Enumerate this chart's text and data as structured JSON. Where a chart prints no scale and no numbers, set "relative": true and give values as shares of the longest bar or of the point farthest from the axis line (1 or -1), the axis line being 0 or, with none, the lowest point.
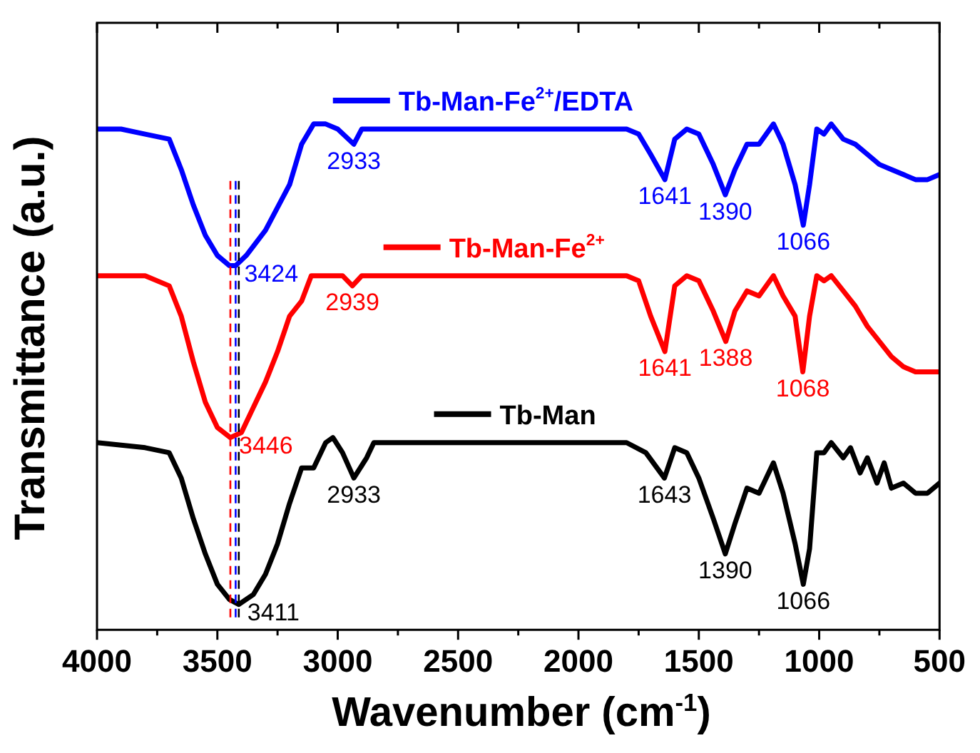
{
  "chart_data": {
    "type": "line",
    "relative": true,
    "xlabel": "Wavenumber (cm$^{-1}$)",
    "ylabel": "Transmittance (a.u.)",
    "xlim": [
      4000,
      500
    ],
    "xticks": [
      4000,
      {
        "value": 3750,
        "label": null
      },
      3500,
      {
        "value": 3250,
        "label": null
      },
      3000,
      {
        "value": 2750,
        "label": null
      },
      2500,
      {
        "value": 2250,
        "label": null
      },
      2000,
      {
        "value": 1750,
        "label": null
      },
      1500,
      {
        "value": 1250,
        "label": null
      },
      1000,
      {
        "value": 750,
        "label": null
      },
      500
    ],
    "grid": false,
    "legend": "top",
    "marker": "none",
    "line_style": "solid",
    "x": [
      4000,
      3900,
      3800,
      3700,
      3650,
      3600,
      3550,
      3500,
      3450,
      3424,
      3380,
      3300,
      3200,
      3150,
      3100,
      3050,
      3000,
      2933,
      2900,
      2850,
      2500,
      2000,
      1800,
      1750,
      1700,
      1641,
      1600,
      1550,
      1500,
      1440,
      1390,
      1350,
      1300,
      1250,
      1190,
      1150,
      1100,
      1066,
      1040,
      1010,
      980,
      950,
      900,
      850,
      800,
      750,
      700,
      650,
      600,
      550,
      500
    ],
    "series": [
      {
        "name": "Tb-Man",
        "color": "#000000",
        "x": [
          4000,
          3800,
          3700,
          3650,
          3600,
          3550,
          3500,
          3450,
          3411,
          3350,
          3300,
          3250,
          3200,
          3150,
          3100,
          3050,
          3020,
          2980,
          2933,
          2880,
          2850,
          2500,
          2000,
          1800,
          1720,
          1643,
          1600,
          1550,
          1500,
          1440,
          1390,
          1350,
          1300,
          1250,
          1190,
          1150,
          1100,
          1066,
          1040,
          1010,
          980,
          950,
          900,
          870,
          830,
          800,
          760,
          730,
          700,
          650,
          600,
          550,
          500
        ],
        "values": [
          0.37,
          0.36,
          0.35,
          0.3,
          0.22,
          0.15,
          0.09,
          0.06,
          0.05,
          0.07,
          0.11,
          0.17,
          0.25,
          0.32,
          0.32,
          0.37,
          0.38,
          0.35,
          0.3,
          0.34,
          0.37,
          0.37,
          0.37,
          0.37,
          0.35,
          0.3,
          0.36,
          0.35,
          0.3,
          0.22,
          0.15,
          0.21,
          0.28,
          0.27,
          0.33,
          0.27,
          0.17,
          0.09,
          0.16,
          0.35,
          0.35,
          0.37,
          0.34,
          0.36,
          0.31,
          0.34,
          0.29,
          0.33,
          0.28,
          0.29,
          0.27,
          0.27,
          0.29
        ]
      },
      {
        "name": "Tb-Man-Fe$^{2+}$",
        "color": "#ff0000",
        "x": [
          4000,
          3800,
          3700,
          3650,
          3600,
          3550,
          3500,
          3446,
          3400,
          3350,
          3300,
          3250,
          3200,
          3150,
          3110,
          3050,
          2980,
          2939,
          2900,
          2500,
          2000,
          1800,
          1750,
          1700,
          1641,
          1600,
          1550,
          1500,
          1440,
          1388,
          1350,
          1300,
          1250,
          1190,
          1150,
          1100,
          1068,
          1040,
          1010,
          980,
          950,
          900,
          850,
          800,
          750,
          700,
          650,
          600,
          550,
          500
        ],
        "values": [
          0.7,
          0.7,
          0.68,
          0.62,
          0.53,
          0.45,
          0.4,
          0.38,
          0.39,
          0.44,
          0.49,
          0.55,
          0.62,
          0.65,
          0.7,
          0.7,
          0.7,
          0.68,
          0.7,
          0.7,
          0.7,
          0.7,
          0.69,
          0.62,
          0.55,
          0.68,
          0.7,
          0.69,
          0.63,
          0.57,
          0.63,
          0.67,
          0.66,
          0.7,
          0.66,
          0.62,
          0.51,
          0.62,
          0.7,
          0.69,
          0.7,
          0.67,
          0.64,
          0.6,
          0.57,
          0.54,
          0.52,
          0.51,
          0.51,
          0.51
        ]
      },
      {
        "name": "Tb-Man-Fe$^{2+}$/EDTA",
        "color": "#0000ff",
        "values": [
          0.99,
          0.99,
          0.98,
          0.97,
          0.91,
          0.84,
          0.78,
          0.74,
          0.72,
          0.72,
          0.74,
          0.79,
          0.88,
          0.96,
          1.0,
          1.0,
          0.99,
          0.96,
          0.99,
          0.99,
          0.99,
          0.99,
          0.99,
          0.98,
          0.94,
          0.89,
          0.97,
          0.99,
          0.98,
          0.92,
          0.86,
          0.91,
          0.96,
          0.96,
          1.0,
          0.96,
          0.88,
          0.8,
          0.88,
          0.99,
          0.98,
          1.0,
          0.97,
          0.96,
          0.94,
          0.92,
          0.91,
          0.9,
          0.89,
          0.89,
          0.9
        ]
      }
    ],
    "ref_lines": [
      {
        "axis": "x",
        "value": 3446,
        "color": "#ff0000",
        "line_style": "dashed"
      },
      {
        "axis": "x",
        "value": 3424,
        "color": "#0000ff",
        "line_style": "dashed"
      },
      {
        "axis": "x",
        "value": 3411,
        "color": "#000000",
        "line_style": "dashed"
      }
    ],
    "annotations": [
      {
        "text": "2933",
        "x": 2933,
        "y": 0.96
      },
      {
        "text": "3424",
        "x": 3424,
        "y": 0.72
      },
      {
        "text": "1641",
        "x": 1641,
        "y": 0.89
      },
      {
        "text": "1390",
        "x": 1390,
        "y": 0.86
      },
      {
        "text": "1066",
        "x": 1066,
        "y": 0.8
      },
      {
        "text": "2939",
        "x": 2939,
        "y": 0.68
      },
      {
        "text": "3446",
        "x": 3446,
        "y": 0.38
      },
      {
        "text": "1641",
        "x": 1641,
        "y": 0.55
      },
      {
        "text": "1388",
        "x": 1388,
        "y": 0.57
      },
      {
        "text": "1068",
        "x": 1068,
        "y": 0.51
      },
      {
        "text": "2933",
        "x": 2933,
        "y": 0.3
      },
      {
        "text": "3411",
        "x": 3411,
        "y": 0.05
      },
      {
        "text": "1643",
        "x": 1643,
        "y": 0.3
      },
      {
        "text": "1390",
        "x": 1390,
        "y": 0.15
      },
      {
        "text": "1066",
        "x": 1066,
        "y": 0.09
      }
    ]
  }
}
